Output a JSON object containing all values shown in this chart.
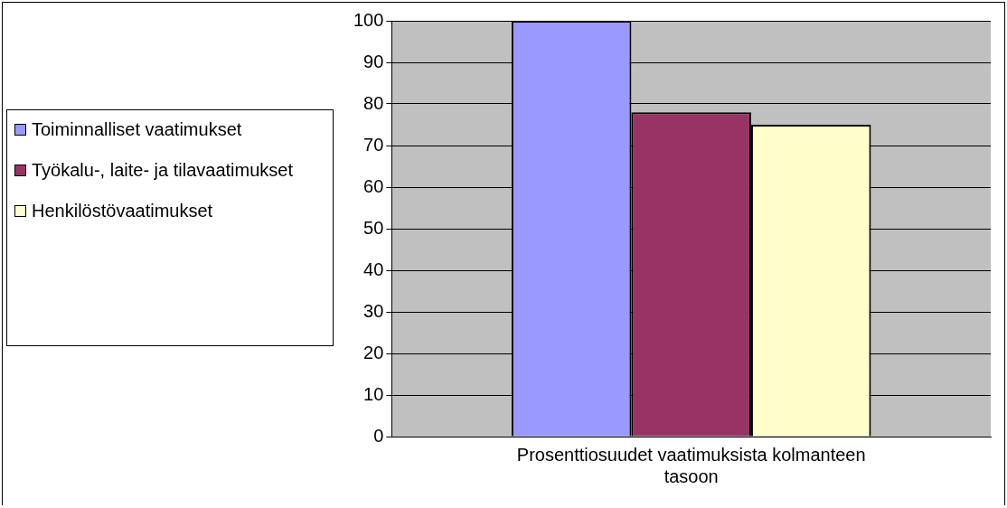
{
  "chart_data": {
    "type": "bar",
    "categories": [
      "Prosenttiosuudet vaatimuksista kolmanteen tasoon"
    ],
    "series": [
      {
        "name": "Toiminnalliset vaatimukset",
        "color": "#9999ff",
        "values": [
          100
        ]
      },
      {
        "name": "Työkalu-, laite- ja tilavaatimukset",
        "color": "#993366",
        "values": [
          78
        ]
      },
      {
        "name": "Henkilöstövaatimukset",
        "color": "#ffffcc",
        "values": [
          75
        ]
      }
    ],
    "ylim": [
      0,
      100
    ],
    "yticks": [
      0,
      10,
      20,
      30,
      40,
      50,
      60,
      70,
      80,
      90,
      100
    ],
    "grid": "y",
    "legend": "left"
  }
}
